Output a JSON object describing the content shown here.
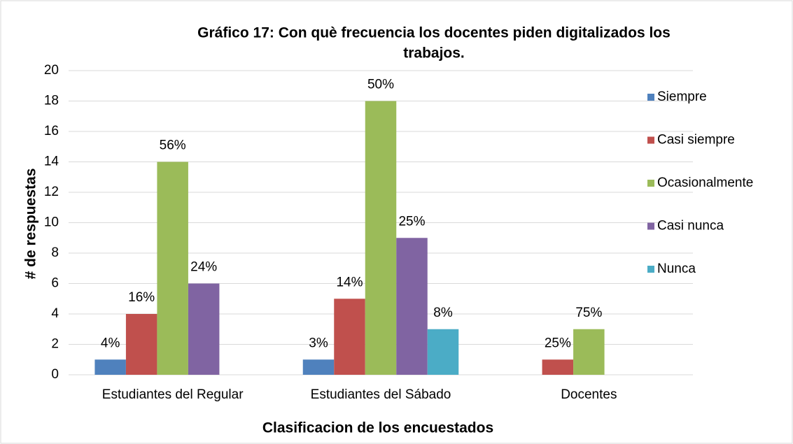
{
  "chart_data": {
    "type": "bar",
    "title": "Gráfico 17: Con què frecuencia los docentes piden digitalizados los trabajos.",
    "title_lines": [
      "Gráfico 17: Con què frecuencia los docentes piden digitalizados los",
      "trabajos."
    ],
    "x_label": "Clasificacion de los encuestados",
    "y_label": "# de respuestas",
    "categories": [
      "Estudiantes del Regular",
      "Estudiantes del Sábado",
      "Docentes"
    ],
    "series": [
      {
        "name": "Siempre",
        "color": "#4f81bd",
        "values": [
          1,
          1,
          null
        ],
        "value_labels": [
          "4%",
          "3%",
          null
        ]
      },
      {
        "name": "Casi siempre",
        "color": "#c0504d",
        "values": [
          4,
          5,
          1
        ],
        "value_labels": [
          "16%",
          "14%",
          "25%"
        ]
      },
      {
        "name": "Ocasionalmente",
        "color": "#9bbb59",
        "values": [
          14,
          18,
          3
        ],
        "value_labels": [
          "56%",
          "50%",
          "75%"
        ]
      },
      {
        "name": "Casi nunca",
        "color": "#8064a2",
        "values": [
          6,
          9,
          null
        ],
        "value_labels": [
          "24%",
          "25%",
          null
        ]
      },
      {
        "name": "Nunca",
        "color": "#4bacc6",
        "values": [
          null,
          3,
          null
        ],
        "value_labels": [
          null,
          "8%",
          null
        ]
      }
    ],
    "ylim": [
      0,
      20
    ],
    "yticks": [
      0,
      2,
      4,
      6,
      8,
      10,
      12,
      14,
      16,
      18,
      20
    ],
    "grid": true,
    "legend": "right"
  }
}
